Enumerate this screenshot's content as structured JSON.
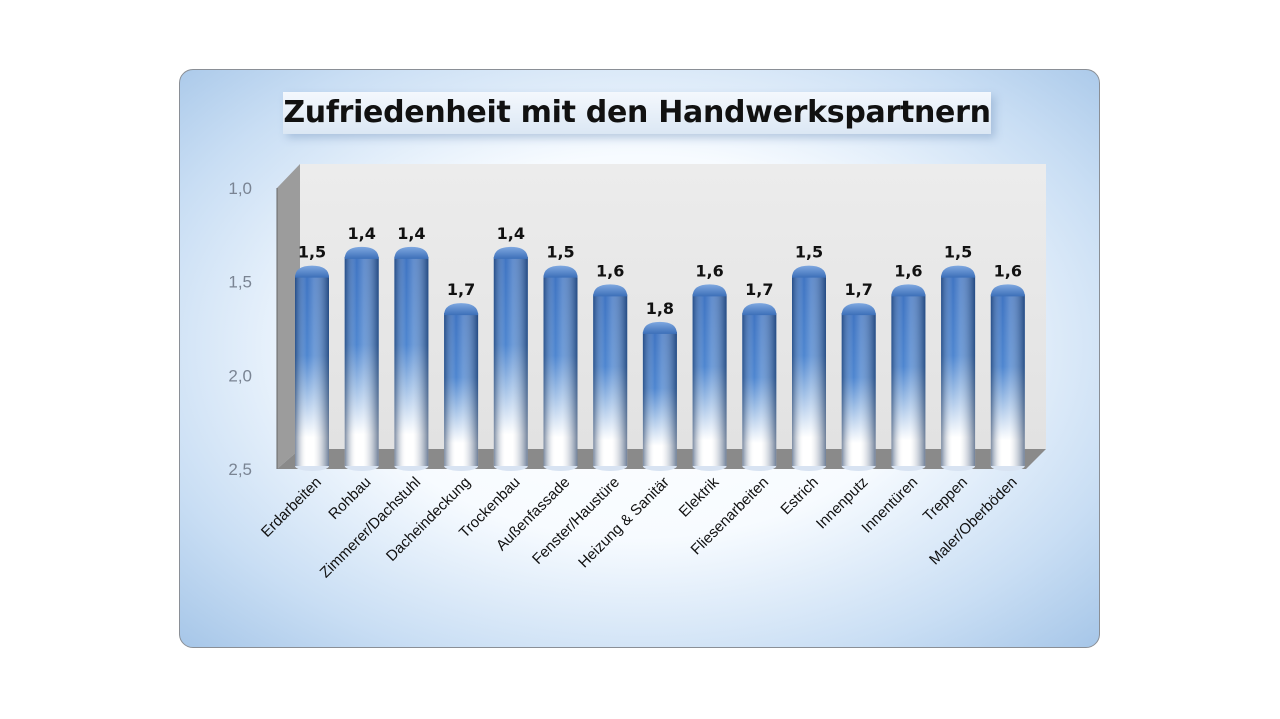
{
  "chart_data": {
    "type": "bar",
    "title": "Zufriedenheit mit den Handwerkspartnern",
    "xlabel": "",
    "ylabel": "",
    "y_axis_reversed": true,
    "ylim": [
      1.0,
      2.5
    ],
    "yticks": [
      "1,0",
      "1,5",
      "2,0",
      "2,5"
    ],
    "ytick_values": [
      1.0,
      1.5,
      2.0,
      2.5
    ],
    "grid": false,
    "legend": "none",
    "categories": [
      "Erdarbeiten",
      "Rohbau",
      "Zimmerer/Dachstuhl",
      "Dacheindeckung",
      "Trockenbau",
      "Außenfassade",
      "Fenster/Haustüre",
      "Heizung & Sanitär",
      "Elektrik",
      "Fliesenarbeiten",
      "Estrich",
      "Innenputz",
      "Innentüren",
      "Treppen",
      "Maler/Oberböden"
    ],
    "values": [
      1.5,
      1.4,
      1.4,
      1.7,
      1.4,
      1.5,
      1.6,
      1.8,
      1.6,
      1.7,
      1.5,
      1.7,
      1.6,
      1.5,
      1.6
    ],
    "labels": [
      "1,5",
      "1,4",
      "1,4",
      "1,7",
      "1,4",
      "1,5",
      "1,6",
      "1,8",
      "1,6",
      "1,7",
      "1,5",
      "1,7",
      "1,6",
      "1,5",
      "1,6"
    ],
    "colors": {
      "bar": "#4a7fc8",
      "bar_light": "#ffffff",
      "wall": "#e8e8e8",
      "side_wall": "#9a9a9a",
      "floor": "#7d7d7d",
      "axis_text": "#7a8493"
    }
  }
}
